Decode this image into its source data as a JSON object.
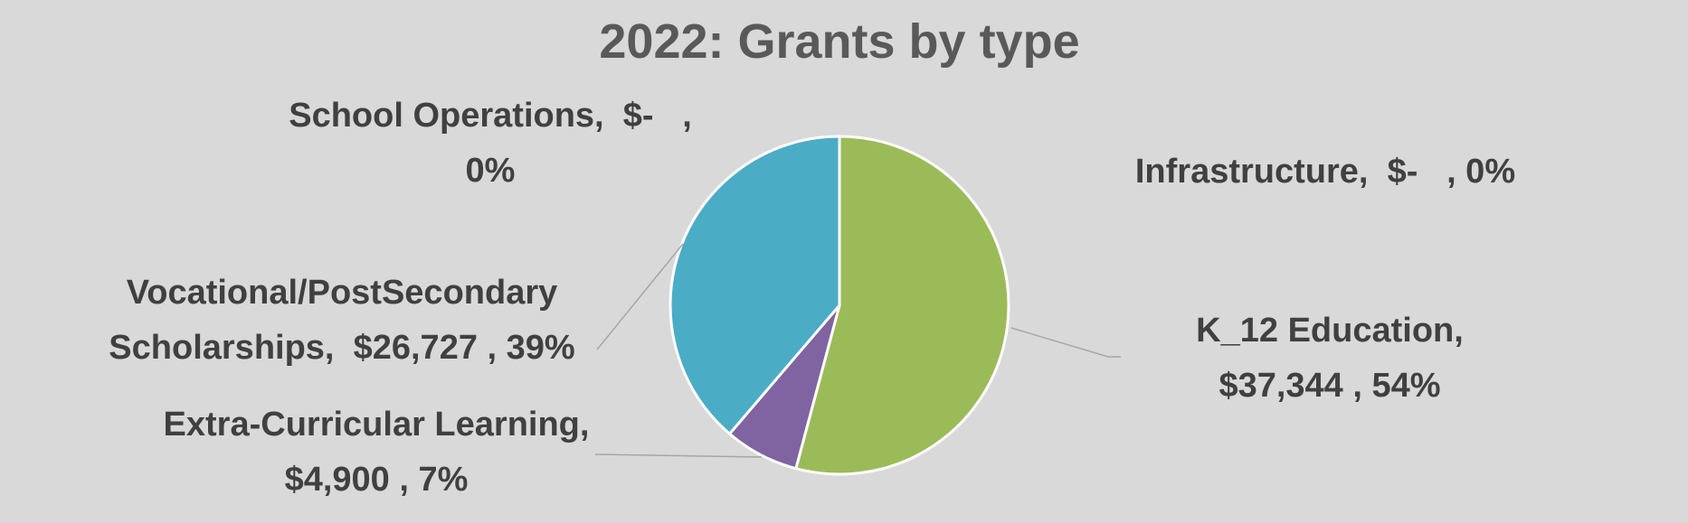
{
  "chart_data": {
    "type": "pie",
    "title": "2022: Grants by type",
    "slices": [
      {
        "name": "Infrastructure",
        "value": 0,
        "value_label": "$-",
        "percent_label": "0%",
        "color": "#4472c4"
      },
      {
        "name": "K_12 Education",
        "value": 37344,
        "value_label": "$37,344",
        "percent_label": "54%",
        "color": "#9bbb59"
      },
      {
        "name": "Extra-Curricular Learning",
        "value": 4900,
        "value_label": "$4,900",
        "percent_label": "7%",
        "color": "#8064a2"
      },
      {
        "name": "Vocational/PostSecondary Scholarships",
        "value": 26727,
        "value_label": "$26,727",
        "percent_label": "39%",
        "color": "#4bacc6"
      },
      {
        "name": "School Operations",
        "value": 0,
        "value_label": "$-",
        "percent_label": "0%",
        "color": "#f79646"
      }
    ],
    "data_labels": [
      {
        "lines": [
          "School Operations,  $-   ,",
          "0%"
        ]
      },
      {
        "lines": [
          "Infrastructure,  $-   , 0%"
        ]
      },
      {
        "lines": [
          "Vocational/PostSecondary",
          "Scholarships,  $26,727 , 39%"
        ]
      },
      {
        "lines": [
          "K_12 Education,",
          "$37,344 , 54%"
        ]
      },
      {
        "lines": [
          "Extra-Curricular Learning,",
          "$4,900 , 7%"
        ]
      }
    ],
    "legend": "none"
  }
}
